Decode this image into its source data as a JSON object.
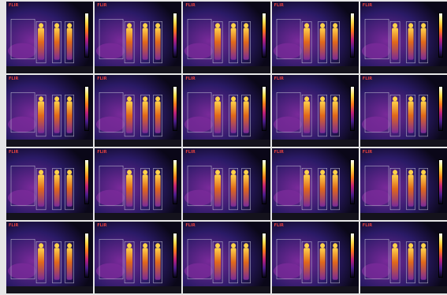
{
  "frames": [
    {
      "logo": "FLIR",
      "tag": "",
      "status": ""
    },
    {
      "logo": "FLIR",
      "tag": "",
      "status": ""
    },
    {
      "logo": "FLIR",
      "tag": "",
      "status": ""
    },
    {
      "logo": "FLIR",
      "tag": "",
      "status": ""
    },
    {
      "logo": "FLIR",
      "tag": "",
      "status": ""
    },
    {
      "logo": "FLIR",
      "tag": "",
      "status": ""
    },
    {
      "logo": "FLIR",
      "tag": "",
      "status": ""
    },
    {
      "logo": "FLIR",
      "tag": "",
      "status": ""
    },
    {
      "logo": "FLIR",
      "tag": "",
      "status": ""
    },
    {
      "logo": "FLIR",
      "tag": "",
      "status": ""
    },
    {
      "logo": "FLIR",
      "tag": "",
      "status": ""
    },
    {
      "logo": "FLIR",
      "tag": "",
      "status": ""
    },
    {
      "logo": "FLIR",
      "tag": "",
      "status": ""
    },
    {
      "logo": "FLIR",
      "tag": "",
      "status": ""
    },
    {
      "logo": "FLIR",
      "tag": "",
      "status": ""
    },
    {
      "logo": "FLIR",
      "tag": "",
      "status": ""
    },
    {
      "logo": "FLIR",
      "tag": "",
      "status": ""
    },
    {
      "logo": "FLIR",
      "tag": "",
      "status": ""
    },
    {
      "logo": "FLIR",
      "tag": "",
      "status": ""
    },
    {
      "logo": "FLIR",
      "tag": "",
      "status": ""
    }
  ],
  "palette": {
    "background": "#0a0718",
    "cold": "#2a1a66",
    "mid": "#7a2a9a",
    "warm": "#e0681a",
    "hot": "#ffd24a",
    "box": "#c8c8d8"
  }
}
